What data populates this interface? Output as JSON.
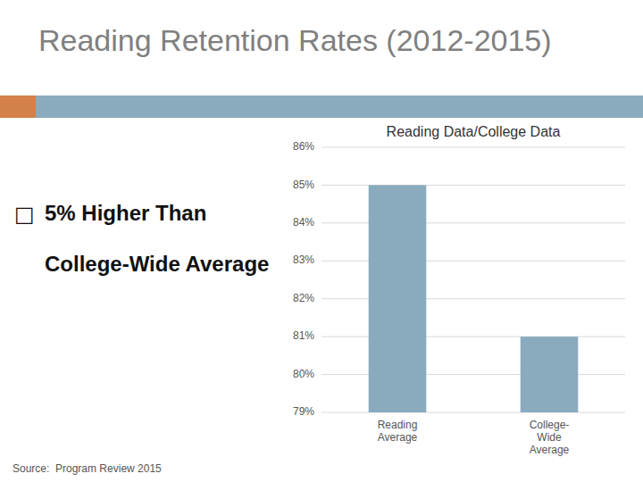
{
  "chart_data": {
    "type": "bar",
    "title": "Reading Data/College Data",
    "categories": [
      "Reading\nAverage",
      "College-\nWide\nAverage"
    ],
    "values": [
      85,
      81
    ],
    "color": "#8aabbe",
    "ylim": [
      79,
      86
    ],
    "yticks": [
      {
        "value": 79,
        "label": "79%"
      },
      {
        "value": 80,
        "label": "80%"
      },
      {
        "value": 81,
        "label": "81%"
      },
      {
        "value": 82,
        "label": "82%"
      },
      {
        "value": 83,
        "label": "83%"
      },
      {
        "value": 84,
        "label": "84%"
      },
      {
        "value": 85,
        "label": "85%"
      },
      {
        "value": 86,
        "label": "86%"
      }
    ],
    "grid": true,
    "annotations": [
      "Reading Retention Rates (2012-2015)",
      "□",
      "5% Higher Than",
      "College-Wide Average",
      "Source:  Program Review 2015"
    ]
  }
}
